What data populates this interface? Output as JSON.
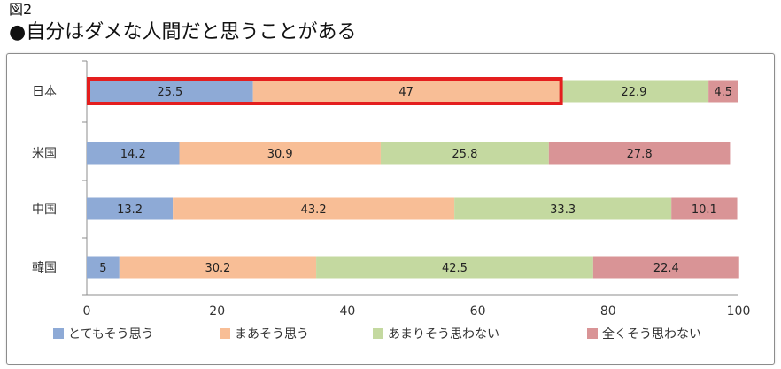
{
  "figure_label": "図2",
  "title": "●自分はダメな人間だと思うことがある",
  "chart_data": {
    "type": "bar",
    "orientation": "horizontal",
    "stacked": true,
    "categories": [
      "日本",
      "米国",
      "中国",
      "韓国"
    ],
    "series": [
      {
        "name": "とてもそう思う",
        "color": "#8eaad6",
        "values": [
          25.5,
          14.2,
          13.2,
          5
        ]
      },
      {
        "name": "まあそう思う",
        "color": "#f8be96",
        "values": [
          47,
          30.9,
          43.2,
          30.2
        ]
      },
      {
        "name": "あまりそう思わない",
        "color": "#c4d9a0",
        "values": [
          22.9,
          25.8,
          33.3,
          42.5
        ]
      },
      {
        "name": "全くそう思わない",
        "color": "#d99496",
        "values": [
          4.5,
          27.8,
          10.1,
          22.4
        ]
      }
    ],
    "xlim": [
      0,
      100
    ],
    "xticks": [
      0,
      20,
      40,
      60,
      80,
      100
    ],
    "legend_position": "bottom",
    "grid": false,
    "highlight": {
      "category": "日本",
      "series": [
        "とてもそう思う",
        "まあそう思う"
      ],
      "color": "#e41e1e"
    }
  }
}
